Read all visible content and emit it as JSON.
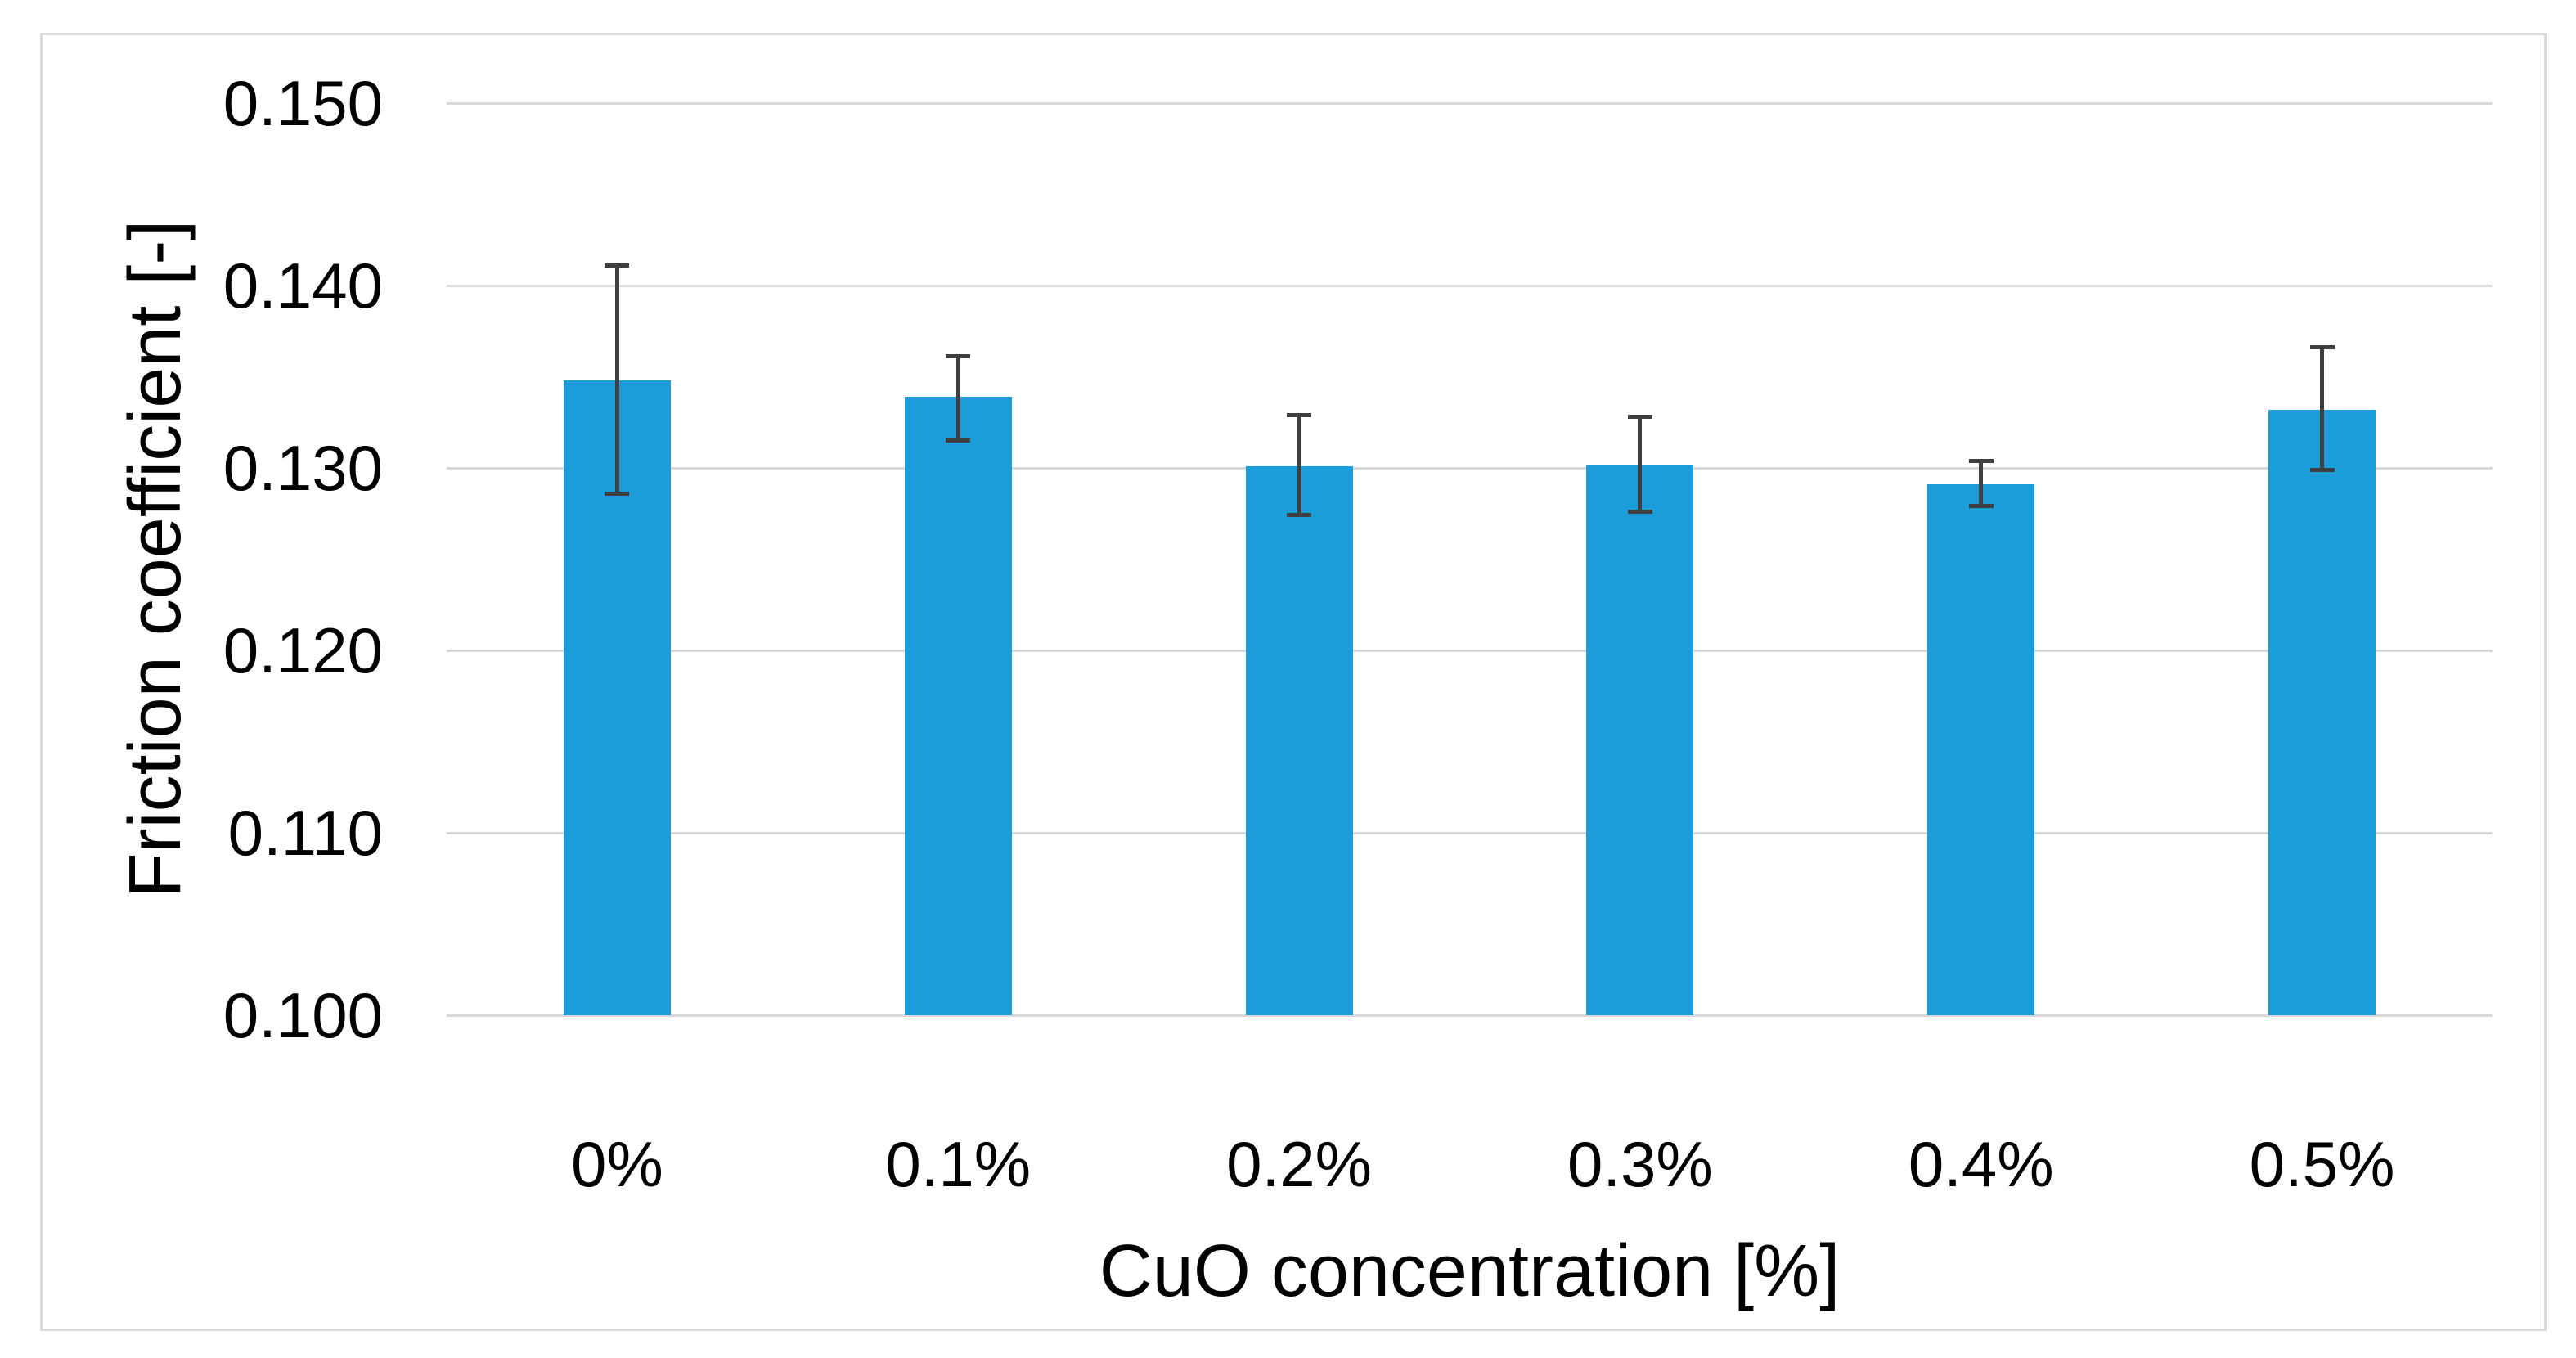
{
  "chart_data": {
    "type": "bar",
    "title": "",
    "xlabel": "CuO concentration [%]",
    "ylabel": "Friction coefficient [-]",
    "categories": [
      "0%",
      "0.1%",
      "0.2%",
      "0.3%",
      "0.4%",
      "0.5%"
    ],
    "values": [
      0.1348,
      0.1339,
      0.1301,
      0.1302,
      0.1291,
      0.1332
    ],
    "error_top": [
      0.1411,
      0.1361,
      0.1329,
      0.1328,
      0.1304,
      0.1366
    ],
    "error_bottom": [
      0.1286,
      0.1315,
      0.1274,
      0.1276,
      0.1279,
      0.1299
    ],
    "ylim": [
      0.1,
      0.15
    ],
    "ytick_step": 0.01,
    "ytick_labels": [
      "0.150",
      "0.140",
      "0.130",
      "0.120",
      "0.110",
      "0.100"
    ],
    "grid": true,
    "legend": "none",
    "colors": {
      "bar_fill": "#1b9dd9",
      "error_bar": "#3f3f3f",
      "gridline": "#d9d9d9",
      "figure_border": "#d7d9db",
      "text": "#000000",
      "background": "#ffffff"
    }
  }
}
